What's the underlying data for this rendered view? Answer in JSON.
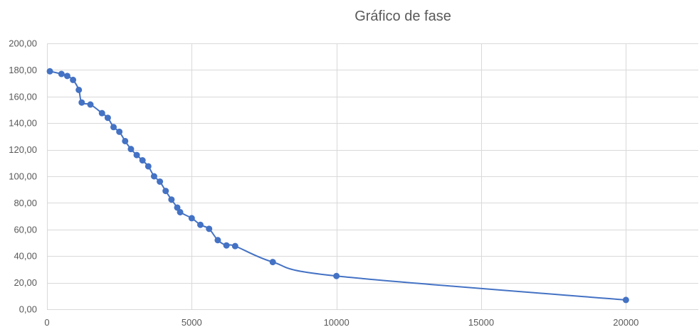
{
  "chart_data": {
    "type": "scatter",
    "title": "Gráfico de fase",
    "xlabel": "",
    "ylabel": "",
    "xlim": [
      0,
      22500
    ],
    "ylim": [
      0,
      200
    ],
    "x_ticks": [
      0,
      5000,
      10000,
      15000,
      20000
    ],
    "x_tick_labels": [
      "0",
      "5000",
      "10000",
      "15000",
      "20000"
    ],
    "y_ticks": [
      0,
      20,
      40,
      60,
      80,
      100,
      120,
      140,
      160,
      180,
      200
    ],
    "y_tick_labels": [
      "0,00",
      "20,00",
      "40,00",
      "60,00",
      "80,00",
      "100,00",
      "120,00",
      "140,00",
      "160,00",
      "180,00",
      "200,00"
    ],
    "grid": true,
    "smooth_line": true,
    "series_color": "#4472C4",
    "series": [
      {
        "points": [
          [
            100,
            179
          ],
          [
            500,
            177
          ],
          [
            700,
            175.5
          ],
          [
            900,
            172.5
          ],
          [
            1100,
            165
          ],
          [
            1200,
            155.5
          ],
          [
            1500,
            154
          ],
          [
            1900,
            147.5
          ],
          [
            2100,
            144
          ],
          [
            2300,
            137
          ],
          [
            2500,
            133.5
          ],
          [
            2700,
            126.5
          ],
          [
            2900,
            120.5
          ],
          [
            3100,
            116
          ],
          [
            3300,
            112
          ],
          [
            3500,
            107.5
          ],
          [
            3700,
            100
          ],
          [
            3900,
            96
          ],
          [
            4100,
            89
          ],
          [
            4300,
            82.5
          ],
          [
            4500,
            76.5
          ],
          [
            4600,
            73
          ],
          [
            5000,
            68.5
          ],
          [
            5300,
            63.5
          ],
          [
            5600,
            60.5
          ],
          [
            5900,
            52
          ],
          [
            6200,
            48
          ],
          [
            6500,
            47.5
          ],
          [
            7800,
            35.5
          ],
          [
            10000,
            25
          ],
          [
            20000,
            7
          ]
        ]
      }
    ]
  }
}
